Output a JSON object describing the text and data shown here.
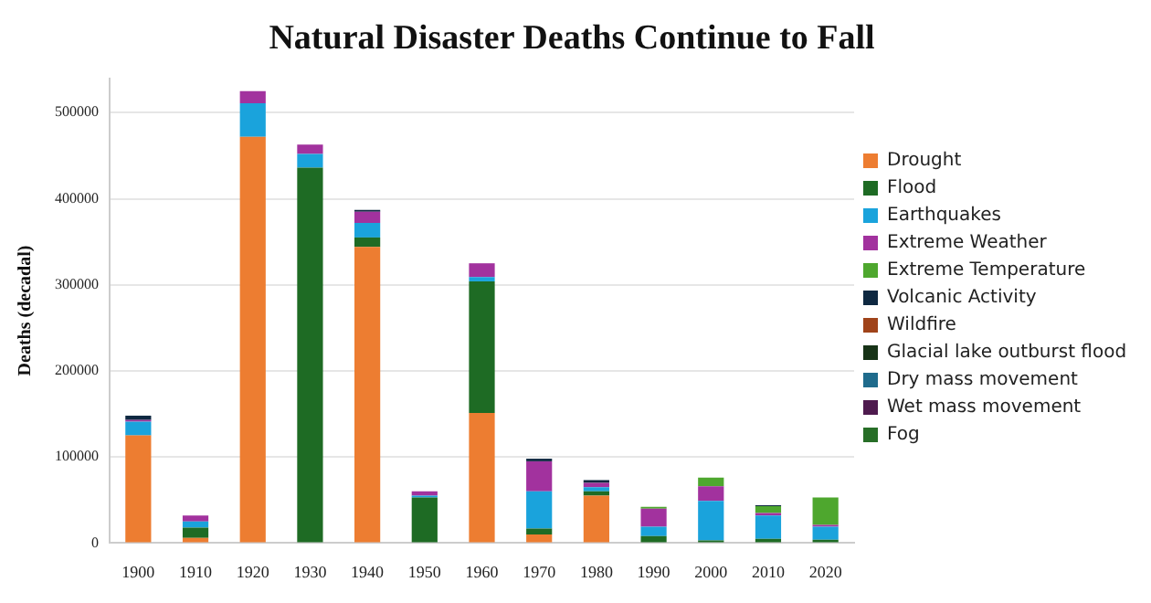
{
  "chart_data": {
    "type": "bar",
    "title": "Natural Disaster Deaths Continue to Fall",
    "ylabel": "Deaths (decadal)",
    "stacked": true,
    "grid": "y",
    "legend": "right",
    "categories": [
      "1900",
      "1910",
      "1920",
      "1930",
      "1940",
      "1950",
      "1960",
      "1970",
      "1980",
      "1990",
      "2000",
      "2010",
      "2020"
    ],
    "ylim": [
      0,
      540000
    ],
    "yticks": [
      0,
      100000,
      200000,
      300000,
      400000,
      500000
    ],
    "series": [
      {
        "name": "Drought",
        "color": "#ed7d31",
        "values": [
          125000,
          6000,
          472000,
          0,
          344000,
          0,
          151000,
          10000,
          55000,
          0,
          0,
          1000,
          0
        ]
      },
      {
        "name": "Flood",
        "color": "#1e6b24",
        "values": [
          0,
          12000,
          0,
          436000,
          11000,
          53000,
          153000,
          7000,
          5000,
          8000,
          3000,
          4000,
          4000
        ]
      },
      {
        "name": "Earthquakes",
        "color": "#1aa3dc",
        "values": [
          16000,
          7000,
          39000,
          16000,
          17000,
          2000,
          5000,
          43000,
          5000,
          11000,
          46000,
          27000,
          15000
        ]
      },
      {
        "name": "Extreme Weather",
        "color": "#a2329e",
        "values": [
          2000,
          7000,
          14000,
          11000,
          13000,
          5000,
          16000,
          35000,
          5000,
          21000,
          17000,
          3000,
          2000
        ]
      },
      {
        "name": "Extreme Temperature",
        "color": "#4ea72e",
        "values": [
          0,
          0,
          0,
          0,
          0,
          0,
          0,
          0,
          0,
          2000,
          10000,
          8000,
          32000
        ]
      },
      {
        "name": "Volcanic Activity",
        "color": "#0e2841",
        "values": [
          5000,
          0,
          0,
          0,
          2000,
          0,
          0,
          3000,
          3000,
          0,
          0,
          1000,
          0
        ]
      },
      {
        "name": "Wildfire",
        "color": "#a0431a",
        "values": [
          0,
          0,
          0,
          0,
          0,
          0,
          0,
          0,
          0,
          0,
          0,
          0,
          0
        ]
      },
      {
        "name": "Glacial lake outburst flood",
        "color": "#173317",
        "values": [
          0,
          0,
          0,
          0,
          0,
          0,
          0,
          0,
          0,
          0,
          0,
          0,
          0
        ]
      },
      {
        "name": "Dry mass movement",
        "color": "#1f6b8c",
        "values": [
          0,
          0,
          0,
          0,
          0,
          0,
          0,
          0,
          0,
          0,
          0,
          0,
          0
        ]
      },
      {
        "name": "Wet mass movement",
        "color": "#4e1a4e",
        "values": [
          0,
          0,
          0,
          0,
          0,
          0,
          0,
          0,
          0,
          0,
          0,
          0,
          0
        ]
      },
      {
        "name": "Fog",
        "color": "#276e27",
        "values": [
          0,
          0,
          0,
          0,
          0,
          0,
          0,
          0,
          0,
          0,
          0,
          0,
          0
        ]
      }
    ]
  }
}
